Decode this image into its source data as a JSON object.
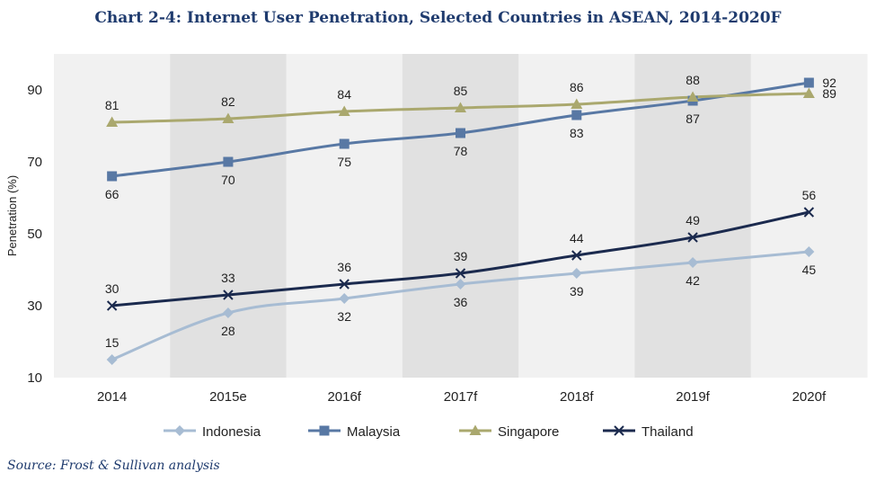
{
  "chart_data": {
    "type": "line",
    "title": "Chart 2-4: Internet User Penetration, Selected Countries in ASEAN, 2014-2020F",
    "source": "Source: Frost & Sullivan analysis",
    "ylabel": "Penetration (%)",
    "xlabel": "",
    "categories": [
      "2014",
      "2015e",
      "2016f",
      "2017f",
      "2018f",
      "2019f",
      "2020f"
    ],
    "yticks": [
      10,
      30,
      50,
      70,
      90
    ],
    "ylim": [
      10,
      100
    ],
    "grid": false,
    "band_shading": "alternating",
    "legend_position": "bottom",
    "series": [
      {
        "name": "Indonesia",
        "color": "#a7bcd3",
        "marker": "diamond",
        "values": [
          15,
          28,
          32,
          36,
          39,
          42,
          45
        ]
      },
      {
        "name": "Malaysia",
        "color": "#5878a4",
        "marker": "square",
        "values": [
          66,
          70,
          75,
          78,
          83,
          87,
          92
        ]
      },
      {
        "name": "Singapore",
        "color": "#aaa86e",
        "marker": "triangle",
        "values": [
          81,
          82,
          84,
          85,
          86,
          88,
          89
        ]
      },
      {
        "name": "Thailand",
        "color": "#1b2a4e",
        "marker": "x",
        "values": [
          30,
          33,
          36,
          39,
          44,
          49,
          56
        ]
      }
    ],
    "data_label_sides": {
      "Indonesia": [
        "above",
        "below",
        "below",
        "below",
        "below",
        "below",
        "below"
      ],
      "Malaysia": [
        "below",
        "below",
        "below",
        "below",
        "below",
        "below",
        "right"
      ],
      "Singapore": [
        "above",
        "above",
        "above",
        "above",
        "above",
        "above",
        "right"
      ],
      "Thailand": [
        "above",
        "above",
        "above",
        "above",
        "above",
        "above",
        "above"
      ]
    }
  }
}
